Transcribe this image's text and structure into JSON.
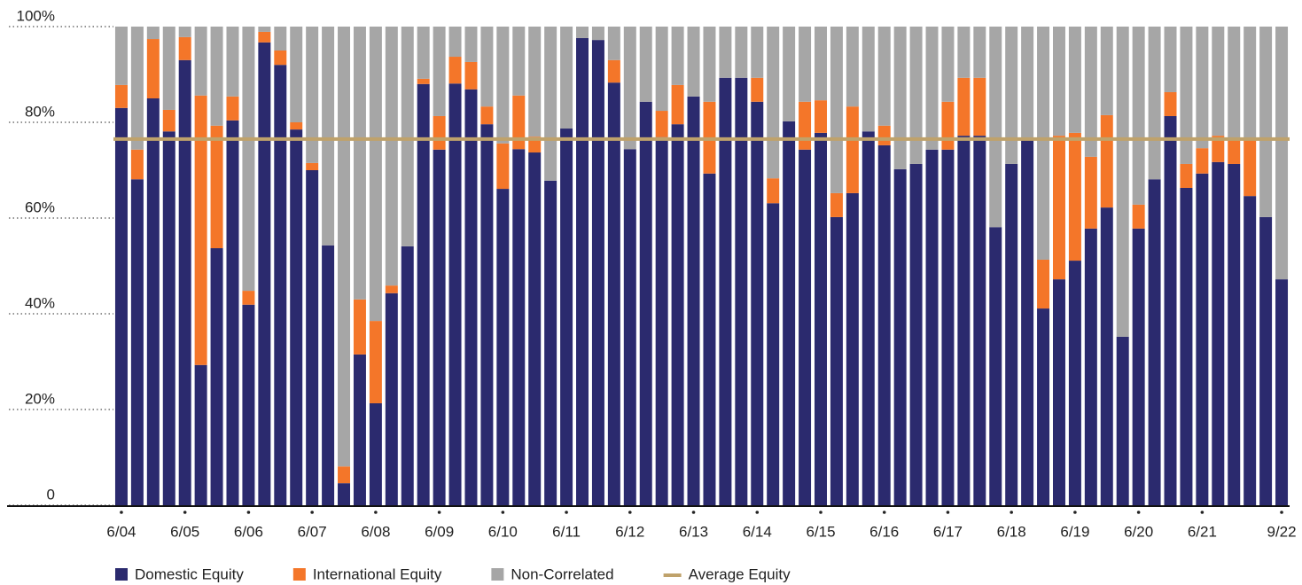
{
  "chart_data": {
    "type": "stacked-bar",
    "categories": [
      "6/04",
      null,
      null,
      null,
      "6/05",
      null,
      null,
      null,
      "6/06",
      null,
      null,
      null,
      "6/07",
      null,
      null,
      null,
      "6/08",
      null,
      null,
      null,
      "6/09",
      null,
      null,
      null,
      "6/10",
      null,
      null,
      null,
      "6/11",
      null,
      null,
      null,
      "6/12",
      null,
      null,
      null,
      "6/13",
      null,
      null,
      null,
      "6/14",
      null,
      null,
      null,
      "6/15",
      null,
      null,
      null,
      "6/16",
      null,
      null,
      null,
      "6/17",
      null,
      null,
      null,
      "6/18",
      null,
      null,
      null,
      "6/19",
      null,
      null,
      null,
      "6/20",
      null,
      null,
      null,
      "6/21",
      null,
      null,
      null,
      null,
      "9/22"
    ],
    "series": [
      {
        "name": "Domestic Equity",
        "color": "#2b2a6e",
        "values": [
          83,
          68.1,
          85,
          78.1,
          93,
          29.3,
          53.7,
          80.4,
          41.9,
          96.7,
          92,
          78.5,
          70,
          54.3,
          4.6,
          31.5,
          21.3,
          44.3,
          54.1,
          88,
          74.3,
          88.1,
          86.9,
          79.6,
          66.1,
          74.4,
          73.7,
          67.8,
          78.7,
          97.6,
          97.2,
          88.3,
          74.4,
          84.3,
          76.9,
          79.6,
          85.4,
          69.3,
          89.3,
          89.3,
          84.3,
          63.1,
          80.2,
          74.3,
          77.8,
          60.2,
          65.2,
          78.1,
          75.2,
          70.2,
          71.3,
          74.3,
          74.3,
          77.2,
          77.2,
          58.1,
          71.3,
          76.3,
          41.1,
          47.2,
          51.1,
          57.8,
          62.2,
          35.2,
          57.8,
          68.1,
          81.3,
          66.3,
          69.3,
          71.7,
          71.3,
          64.6,
          60.2,
          47.2
        ]
      },
      {
        "name": "International Equity",
        "color": "#f47629",
        "values": [
          4.8,
          6.2,
          12.4,
          4.5,
          4.8,
          56.3,
          25.6,
          5,
          2.9,
          2.2,
          3,
          1.5,
          1.5,
          0,
          3.5,
          11.5,
          17.2,
          1.6,
          0,
          1.1,
          7,
          5.6,
          5.7,
          3.7,
          9.5,
          11.2,
          3.3,
          0,
          0,
          0,
          0,
          4.7,
          0,
          0,
          5.5,
          8.2,
          0,
          15,
          0,
          0,
          5,
          5.2,
          0,
          10,
          6.8,
          5,
          18.1,
          0,
          4.1,
          0,
          0,
          0,
          10,
          12.1,
          12.1,
          0,
          0,
          0,
          10.2,
          30,
          26.7,
          15,
          19.3,
          0,
          5,
          0,
          5,
          5,
          5.3,
          5.5,
          5,
          11.7,
          0,
          0
        ]
      },
      {
        "name": "Non-Correlated",
        "color": "#a6a6a6",
        "values": [
          12.2,
          25.7,
          2.6,
          17.4,
          2.2,
          14.4,
          20.7,
          14.6,
          55.2,
          1.1,
          5,
          20,
          28.5,
          45.7,
          91.9,
          57,
          61.5,
          54.1,
          45.9,
          10.9,
          18.7,
          6.3,
          7.4,
          16.7,
          24.4,
          14.4,
          23,
          32.2,
          21.3,
          2.4,
          2.8,
          7,
          25.6,
          15.7,
          17.6,
          12.2,
          14.6,
          15.7,
          10.7,
          10.7,
          10.7,
          31.7,
          19.8,
          15.7,
          15.4,
          34.8,
          16.7,
          21.9,
          20.7,
          29.8,
          28.7,
          25.7,
          15.7,
          10.7,
          10.7,
          41.9,
          28.7,
          23.7,
          48.7,
          22.8,
          22.2,
          27.2,
          18.5,
          64.8,
          37.2,
          31.9,
          13.7,
          28.7,
          25.4,
          22.8,
          23.7,
          23.7,
          39.8,
          52.8
        ]
      }
    ],
    "average": {
      "name": "Average Equity",
      "color": "#bfa26b",
      "value": 76.5
    },
    "ylim": [
      0,
      100
    ],
    "yticks": [
      0,
      {
        "value": 20,
        "label": "20%"
      },
      {
        "value": 40,
        "label": "40%"
      },
      {
        "value": 60,
        "label": "60%"
      },
      {
        "value": 80,
        "label": "80%"
      },
      {
        "value": 100,
        "label": "100%"
      }
    ],
    "grid": true
  }
}
